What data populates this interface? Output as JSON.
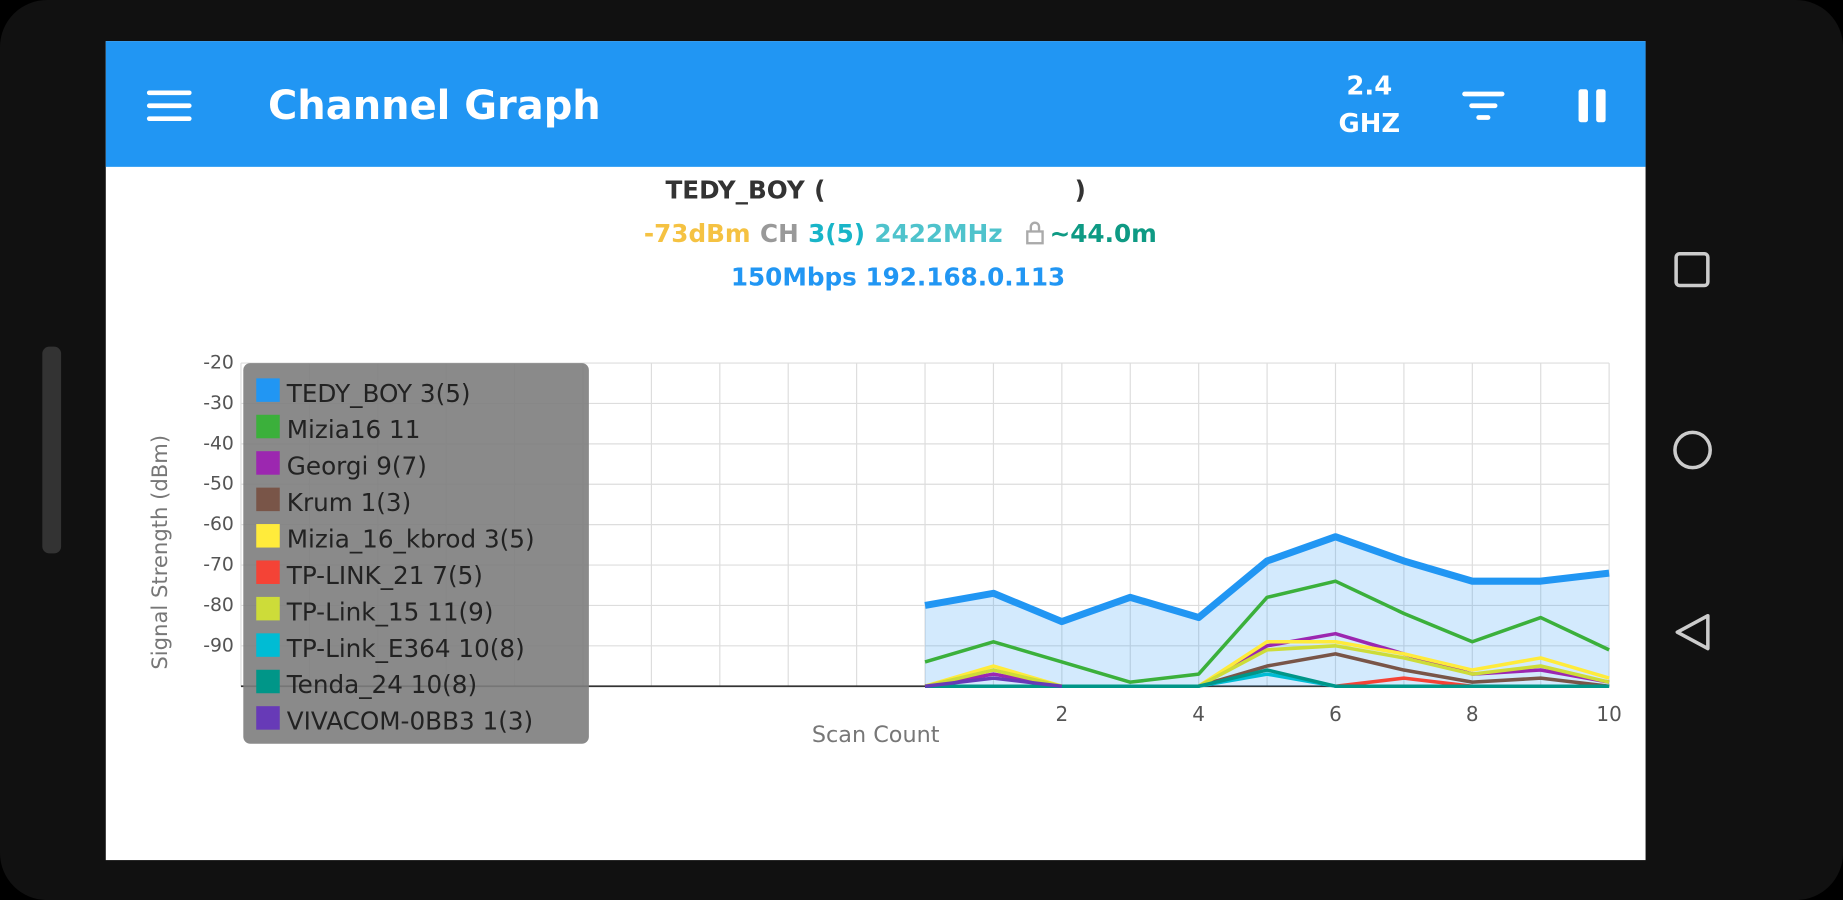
{
  "app_bar": {
    "title": "Channel Graph",
    "band": "2.4",
    "band_unit": "GHZ"
  },
  "connection": {
    "ssid": "TEDY_BOY",
    "open_paren": "(",
    "close_paren": ")",
    "signal": "-73dBm",
    "channel_label": "CH",
    "channel": "3(5)",
    "frequency": "2422MHz",
    "distance": "~44.0m",
    "details": "150Mbps 192.168.0.113"
  },
  "chart_data": {
    "type": "line",
    "ylabel": "Signal Strength (dBm)",
    "xlabel": "Scan Count",
    "xlim": [
      -10,
      10
    ],
    "ylim": [
      -100,
      -20
    ],
    "xticks": [
      2,
      4,
      6,
      8,
      10
    ],
    "yticks": [
      -20,
      -30,
      -40,
      -50,
      -60,
      -70,
      -80,
      -90
    ],
    "xgrid": [
      -10,
      -9,
      -8,
      -7,
      -6,
      -5,
      -4,
      -3,
      -2,
      -1,
      0,
      1,
      2,
      3,
      4,
      5,
      6,
      7,
      8,
      9,
      10
    ],
    "grid": true,
    "x": [
      0,
      1,
      2,
      3,
      4,
      5,
      6,
      7,
      8,
      9,
      10
    ],
    "series": [
      {
        "name": "TEDY_BOY 3(5)",
        "color": "#2196f3",
        "fill": true,
        "values": [
          -80,
          -77,
          -84,
          -78,
          -83,
          -69,
          -63,
          -69,
          -74,
          -74,
          -72
        ]
      },
      {
        "name": "Mizia16 11",
        "color": "#3bb03b",
        "values": [
          -94,
          -89,
          -94,
          -99,
          -97,
          -78,
          -74,
          -82,
          -89,
          -83,
          -91
        ]
      },
      {
        "name": "Georgi 9(7)",
        "color": "#9c27b0",
        "values": [
          -100,
          -97,
          -100,
          -100,
          -100,
          -90,
          -87,
          -92,
          -97,
          -96,
          -99
        ]
      },
      {
        "name": "Krum 1(3)",
        "color": "#795548",
        "values": [
          -100,
          -100,
          -100,
          -100,
          -100,
          -95,
          -92,
          -96,
          -99,
          -98,
          -100
        ]
      },
      {
        "name": "Mizia_16_kbrod 3(5)",
        "color": "#ffeb3b",
        "values": [
          -100,
          -95,
          -100,
          -100,
          -100,
          -89,
          -89,
          -92,
          -96,
          -93,
          -98
        ]
      },
      {
        "name": "TP-LINK_21 7(5)",
        "color": "#f44336",
        "values": [
          null,
          null,
          null,
          null,
          null,
          null,
          -100,
          -98,
          -100,
          null,
          null
        ]
      },
      {
        "name": "TP-Link_15 11(9)",
        "color": "#cddc39",
        "values": [
          -100,
          -96,
          -100,
          -100,
          -100,
          -91,
          -90,
          -93,
          -97,
          -95,
          -99
        ]
      },
      {
        "name": "TP-Link_E364 10(8)",
        "color": "#00bcd4",
        "values": [
          -100,
          -100,
          -100,
          -100,
          -100,
          -97,
          -100,
          -100,
          -100,
          -100,
          -100
        ]
      },
      {
        "name": "Tenda_24 10(8)",
        "color": "#009688",
        "values": [
          -100,
          -100,
          -100,
          -100,
          -100,
          -96,
          -100,
          -100,
          -100,
          -100,
          -100
        ]
      },
      {
        "name": "VIVACOM-0BB3 1(3)",
        "color": "#673ab7",
        "values": [
          -100,
          -98,
          -100,
          null,
          null,
          null,
          null,
          null,
          null,
          null,
          null
        ]
      }
    ]
  }
}
